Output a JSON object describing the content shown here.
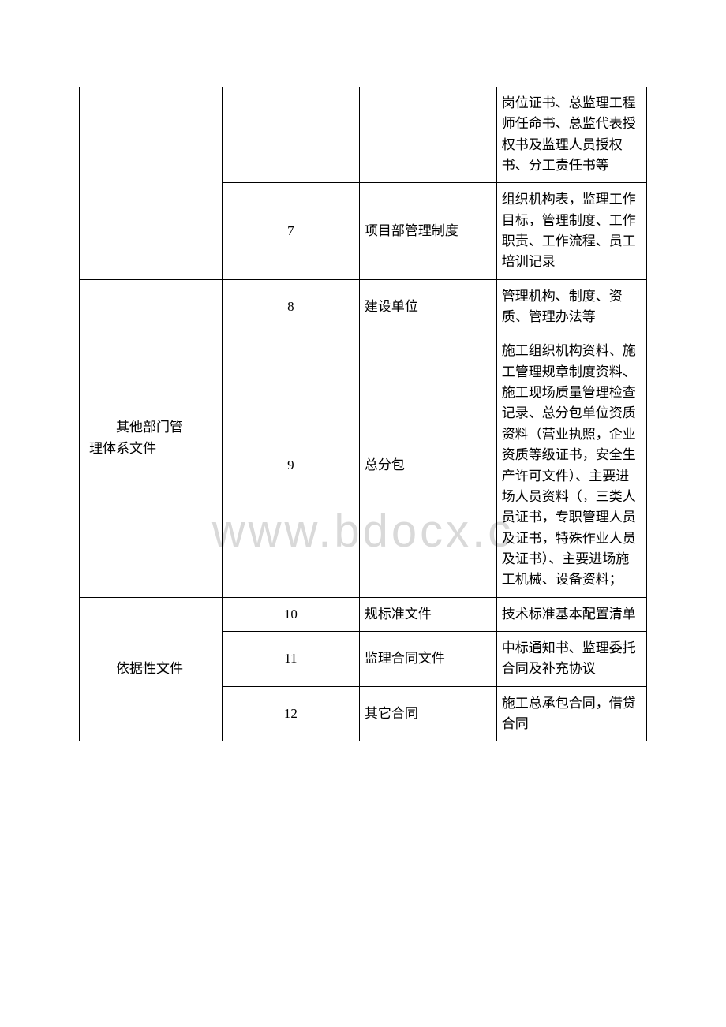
{
  "watermark": "www.bdocx.c",
  "rows": [
    {
      "category": "",
      "num": "",
      "name": "",
      "desc": "岗位证书、总监理工程师任命书、总监代表授权书及监理人员授权书、分工责任书等"
    },
    {
      "category": "",
      "num": "7",
      "name": "项目部管理制度",
      "desc": "组织机构表，监理工作目标，管理制度、工作职责、工作流程、员工培训记录"
    },
    {
      "category_line1": "其他部门管",
      "category_line2": "理体系文件",
      "num": "8",
      "name": "建设单位",
      "desc": "管理机构、制度、资质、管理办法等"
    },
    {
      "num": "9",
      "name": "总分包",
      "desc": "施工组织机构资料、施工管理规章制度资料、施工现场质量管理检查记录、总分包单位资质资料（营业执照，企业资质等级证书，安全生产许可文件）、主要进场人员资料（，三类人员证书，专职管理人员及证书，特殊作业人员及证书）、主要进场施工机械、设备资料；"
    },
    {
      "category": "依据性文件",
      "num": "10",
      "name": "规标准文件",
      "desc": "技术标准基本配置清单"
    },
    {
      "num": "11",
      "name": "监理合同文件",
      "desc": "中标通知书、监理委托合同及补充协议"
    },
    {
      "num": "12",
      "name": "其它合同",
      "desc": "施工总承包合同，借贷合同"
    }
  ]
}
